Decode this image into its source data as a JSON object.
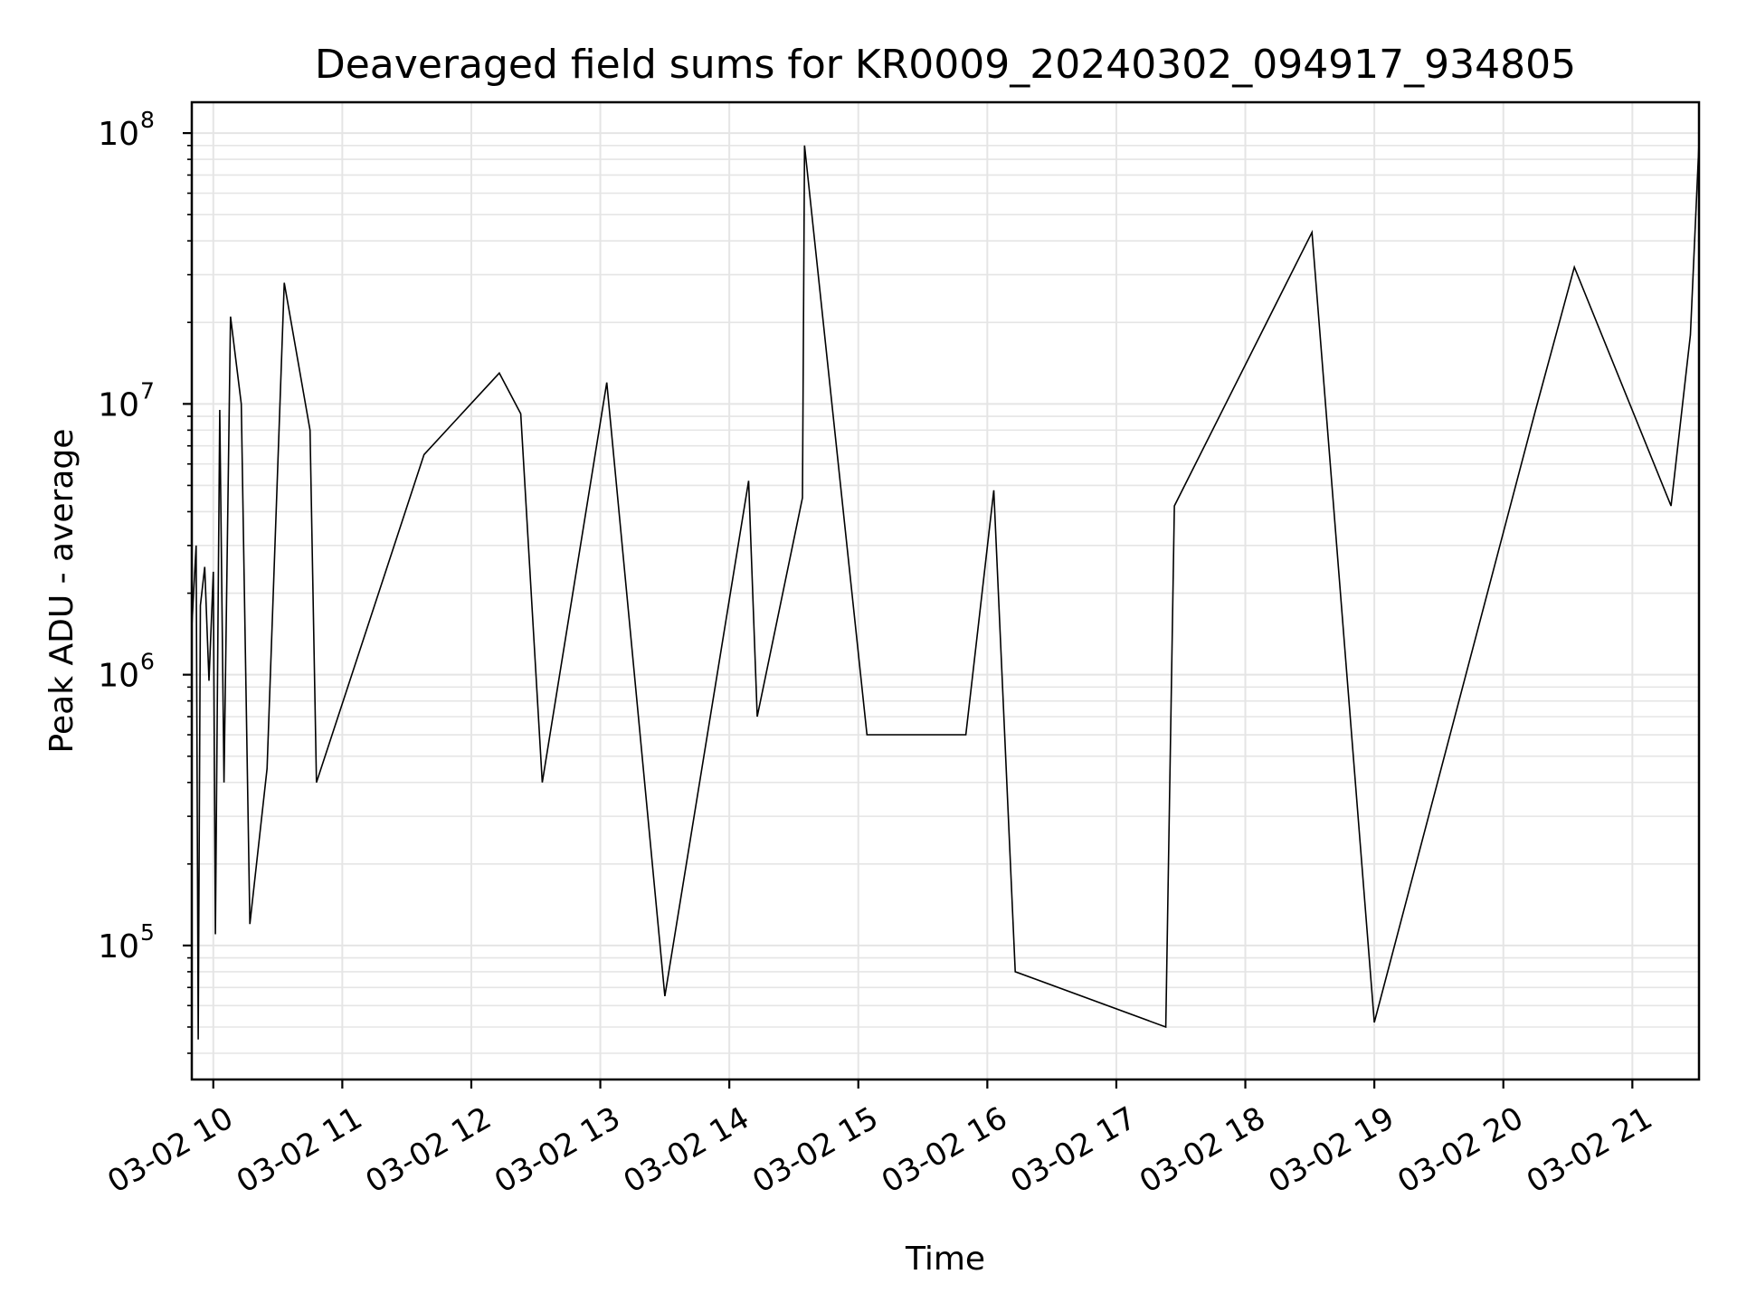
{
  "chart_data": {
    "type": "line",
    "title": "Deaveraged field sums for KR0009_20240302_094917_934805",
    "xlabel": "Time",
    "ylabel": "Peak ADU - average",
    "yscale": "log",
    "ylim": [
      32000,
      130000000
    ],
    "xlim": [
      "2024-03-02 09:50",
      "2024-03-02 21:31"
    ],
    "x_ticks": [
      "03-02 10",
      "03-02 11",
      "03-02 12",
      "03-02 13",
      "03-02 14",
      "03-02 15",
      "03-02 16",
      "03-02 17",
      "03-02 18",
      "03-02 19",
      "03-02 20",
      "03-02 21"
    ],
    "y_ticks": [
      {
        "base": "10",
        "exp": "5",
        "value": 100000
      },
      {
        "base": "10",
        "exp": "6",
        "value": 1000000
      },
      {
        "base": "10",
        "exp": "7",
        "value": 10000000
      },
      {
        "base": "10",
        "exp": "8",
        "value": 100000000
      }
    ],
    "grid": true,
    "line_color": "#000000",
    "grid_color": "#e5e5e5",
    "series": [
      {
        "x": [
          "2024-03-02 09:50",
          "2024-03-02 09:52",
          "2024-03-02 09:53",
          "2024-03-02 09:54",
          "2024-03-02 09:56",
          "2024-03-02 09:58",
          "2024-03-02 10:00",
          "2024-03-02 10:01",
          "2024-03-02 10:03",
          "2024-03-02 10:05",
          "2024-03-02 10:08",
          "2024-03-02 10:13",
          "2024-03-02 10:17",
          "2024-03-02 10:25",
          "2024-03-02 10:33",
          "2024-03-02 10:45",
          "2024-03-02 10:48",
          "2024-03-02 11:38",
          "2024-03-02 12:13",
          "2024-03-02 12:23",
          "2024-03-02 12:33",
          "2024-03-02 13:03",
          "2024-03-02 13:30",
          "2024-03-02 14:09",
          "2024-03-02 14:13",
          "2024-03-02 14:34",
          "2024-03-02 14:35",
          "2024-03-02 15:04",
          "2024-03-02 15:50",
          "2024-03-02 16:03",
          "2024-03-02 16:13",
          "2024-03-02 17:23",
          "2024-03-02 17:27",
          "2024-03-02 18:31",
          "2024-03-02 19:00",
          "2024-03-02 20:15",
          "2024-03-02 20:33",
          "2024-03-02 21:18",
          "2024-03-02 21:27",
          "2024-03-02 21:31"
        ],
        "values": [
          1500000,
          3000000,
          45000,
          1800000,
          2500000,
          950000,
          2400000,
          110000,
          9500000,
          400000,
          21000000,
          10000000,
          120000,
          450000,
          28000000,
          8000000,
          400000,
          6500000,
          13000000,
          9200000,
          400000,
          12000000,
          65000,
          5200000,
          700000,
          4500000,
          90000000,
          600000,
          600000,
          4800000,
          80000,
          50000,
          4200000,
          43000000,
          52000,
          9500000,
          32000000,
          4200000,
          18000000,
          92000000
        ]
      }
    ]
  }
}
